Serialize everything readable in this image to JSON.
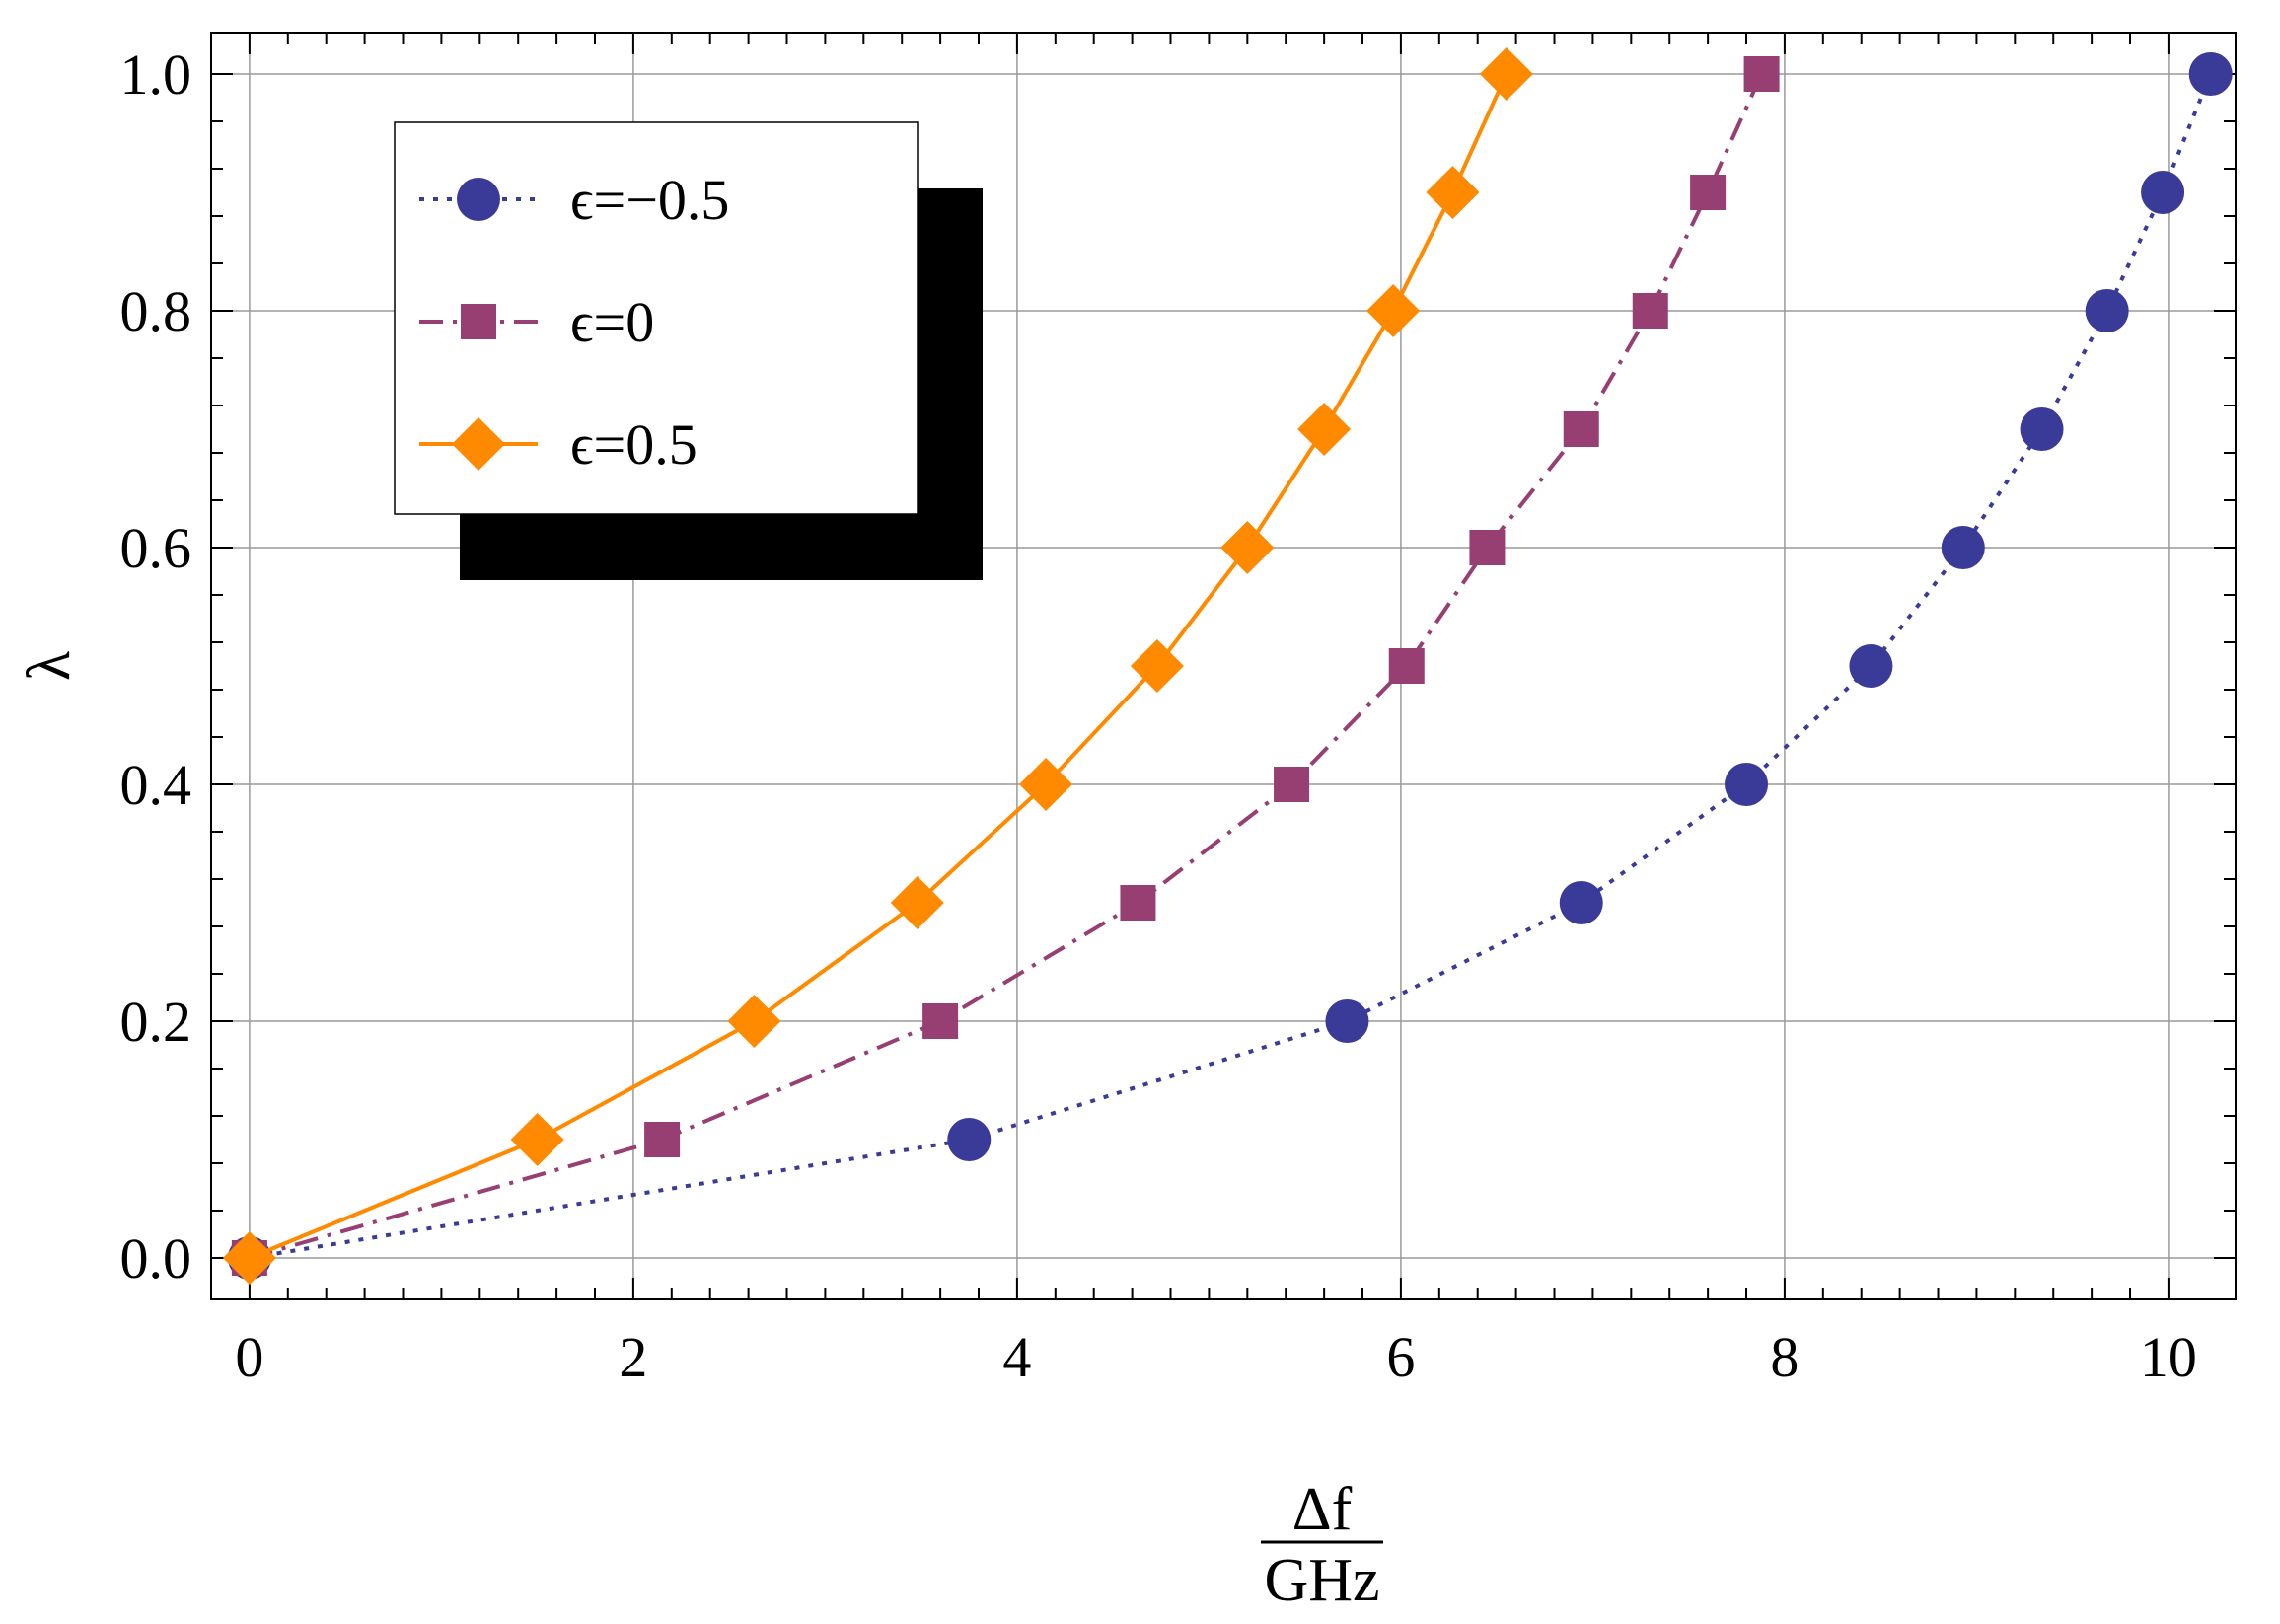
{
  "chart_data": {
    "type": "line",
    "title": "",
    "xlabel": {
      "numerator": "Δf",
      "denominator": "GHz"
    },
    "ylabel": "λ",
    "xlim": [
      -0.2,
      10.35
    ],
    "ylim": [
      -0.035,
      1.035
    ],
    "xticks": [
      0,
      2,
      4,
      6,
      8,
      10
    ],
    "xtick_labels": [
      "0",
      "2",
      "4",
      "6",
      "8",
      "10"
    ],
    "yticks": [
      0.0,
      0.2,
      0.4,
      0.6,
      0.8,
      1.0
    ],
    "ytick_labels": [
      "0.0",
      "0.2",
      "0.4",
      "0.6",
      "0.8",
      "1.0"
    ],
    "grid": true,
    "legend_position": "top-left",
    "series": [
      {
        "name": "ϵ=−0.5",
        "color": "#3a3a98",
        "line_style": "dotted",
        "marker": "circle",
        "x": [
          0,
          3.75,
          5.72,
          6.94,
          7.8,
          8.45,
          8.93,
          9.34,
          9.68,
          9.97,
          10.22
        ],
        "y": [
          0.0,
          0.1,
          0.2,
          0.3,
          0.4,
          0.5,
          0.6,
          0.7,
          0.8,
          0.9,
          1.0
        ]
      },
      {
        "name": "ϵ=0",
        "color": "#973f72",
        "line_style": "dashdot",
        "marker": "square",
        "x": [
          0,
          2.15,
          3.6,
          4.63,
          5.43,
          6.03,
          6.45,
          6.94,
          7.3,
          7.6,
          7.88
        ],
        "y": [
          0.0,
          0.1,
          0.2,
          0.3,
          0.4,
          0.5,
          0.6,
          0.7,
          0.8,
          0.9,
          1.0
        ]
      },
      {
        "name": "ϵ=0.5",
        "color": "#ff8a00",
        "line_style": "solid",
        "marker": "diamond",
        "x": [
          0,
          1.5,
          2.63,
          3.48,
          4.15,
          4.73,
          5.2,
          5.6,
          5.96,
          6.27,
          6.55
        ],
        "y": [
          0.0,
          0.1,
          0.2,
          0.3,
          0.4,
          0.5,
          0.6,
          0.7,
          0.8,
          0.9,
          1.0
        ]
      }
    ]
  }
}
